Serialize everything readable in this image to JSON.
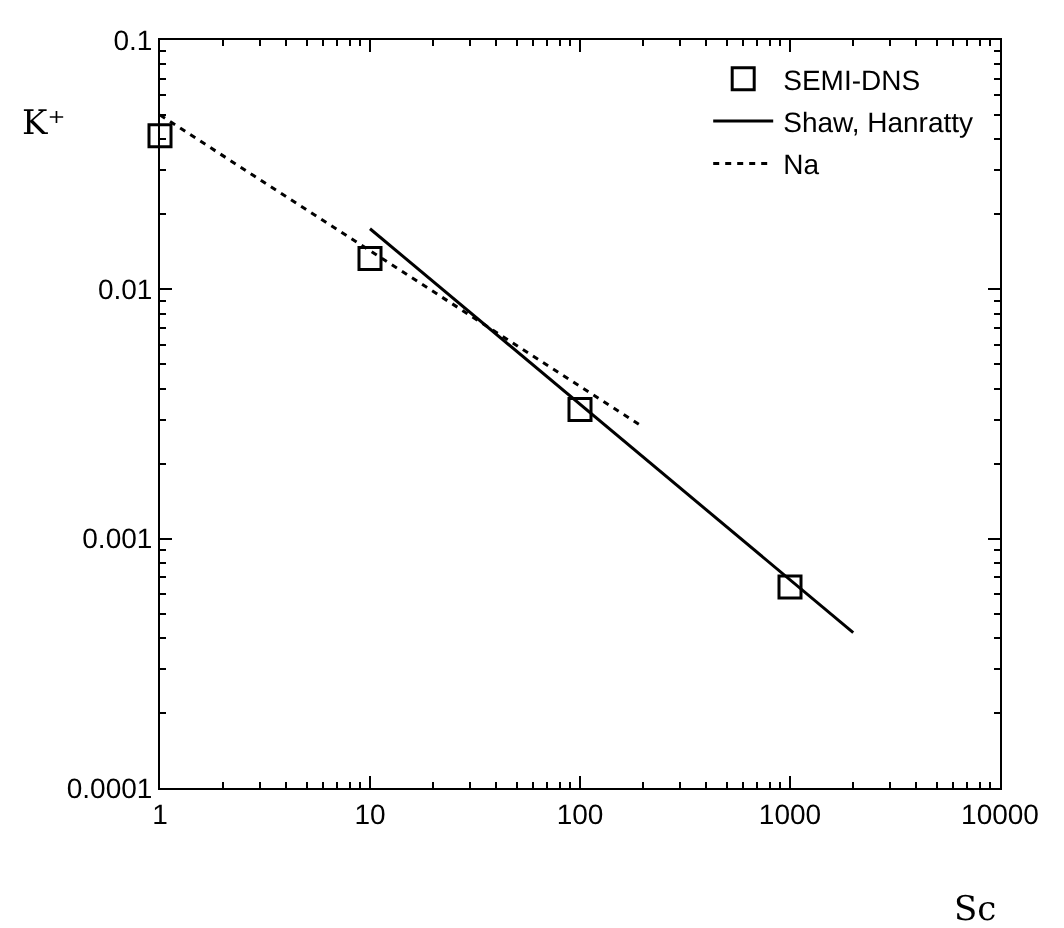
{
  "chart_data": {
    "type": "line",
    "xlabel": "Sc",
    "ylabel": "K⁺",
    "log": "xy",
    "grid": false,
    "legend": "top right",
    "xlim": [
      1,
      10000
    ],
    "xticks": [
      1,
      10,
      100,
      1000,
      10000
    ],
    "ylim": [
      0.0001,
      0.1
    ],
    "yticks": [
      0.0001,
      0.001,
      0.01,
      0.1
    ],
    "series": [
      {
        "name": "SEMI-DNS",
        "type": "scatter",
        "marker": "square",
        "color": "#000000",
        "x": [
          1,
          10,
          100,
          1000
        ],
        "values": [
          0.0413,
          0.0133,
          0.0033,
          0.00064
        ]
      },
      {
        "name": "Shaw, Hanratty",
        "line_style": "solid",
        "marker": "none",
        "color": "#000000",
        "x": [
          10,
          2000
        ],
        "values": [
          0.0175,
          0.00042
        ]
      },
      {
        "name": "Na",
        "line_style": "dotted",
        "marker": "none",
        "color": "#000000",
        "x": [
          1,
          200
        ],
        "values": [
          0.05,
          0.0028
        ]
      }
    ]
  }
}
